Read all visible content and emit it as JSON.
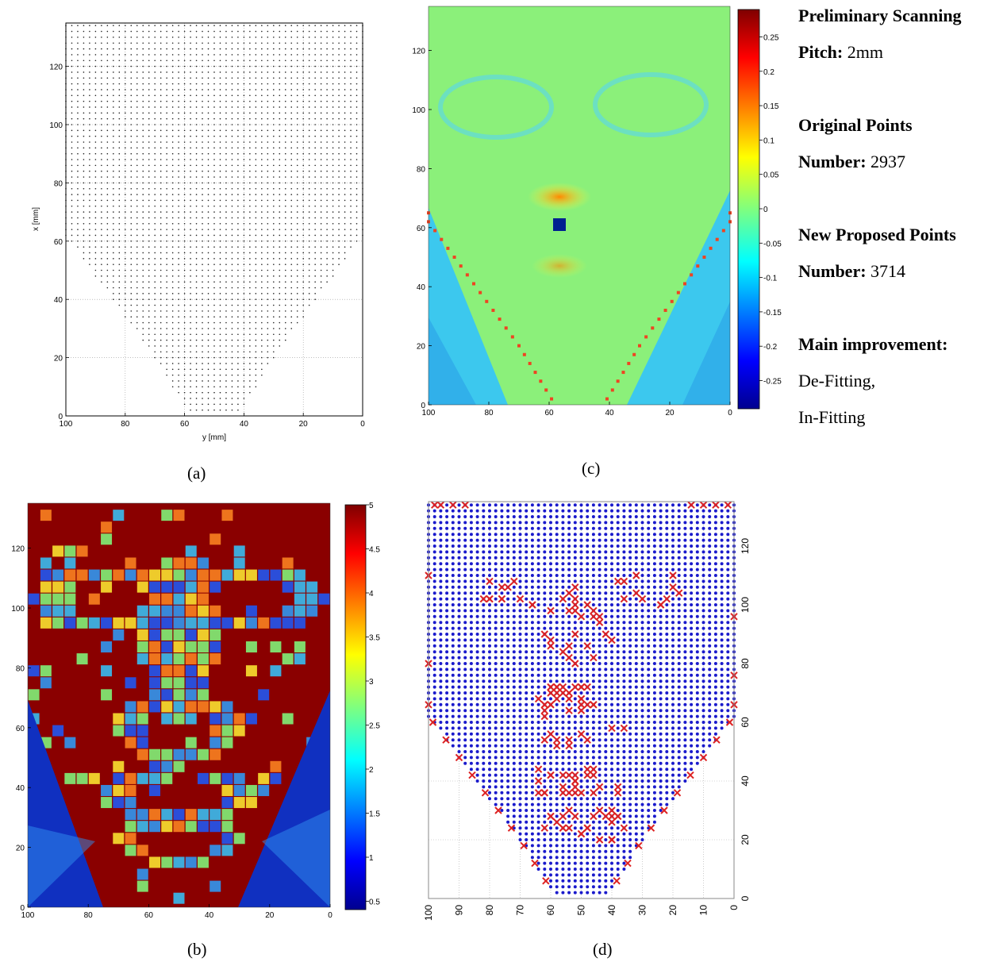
{
  "panels": {
    "a": {
      "caption": "(a)",
      "xlabel": "y [mm]",
      "ylabel": "x [mm]",
      "xticks": [
        "100",
        "80",
        "60",
        "40",
        "20",
        "0"
      ],
      "yticks": [
        "0",
        "20",
        "40",
        "60",
        "80",
        "100",
        "120"
      ]
    },
    "b": {
      "caption": "(b)",
      "xticks": [
        "100",
        "80",
        "60",
        "40",
        "20",
        "0"
      ],
      "yticks": [
        "0",
        "20",
        "40",
        "60",
        "80",
        "100",
        "120"
      ],
      "colorbar_ticks": [
        "0.5",
        "1",
        "1.5",
        "2",
        "2.5",
        "3",
        "3.5",
        "4",
        "4.5",
        "5"
      ]
    },
    "c": {
      "caption": "(c)",
      "xticks": [
        "100",
        "80",
        "60",
        "40",
        "20",
        "0"
      ],
      "yticks": [
        "0",
        "20",
        "40",
        "60",
        "80",
        "100",
        "120"
      ],
      "colorbar_ticks": [
        "0.25",
        "0.2",
        "0.15",
        "0.1",
        "0.05",
        "0",
        "-0.05",
        "-0.1",
        "-0.15",
        "-0.2",
        "-0.25"
      ]
    },
    "d": {
      "caption": "(d)",
      "xticks": [
        "100",
        "90",
        "80",
        "70",
        "60",
        "50",
        "40",
        "30",
        "20",
        "10",
        "0"
      ],
      "yticks": [
        "0",
        "20",
        "40",
        "60",
        "80",
        "100",
        "120"
      ]
    }
  },
  "info": {
    "title": "Preliminary Scanning",
    "pitch_label": "Pitch:",
    "pitch_value": "2mm",
    "orig_title": "Original Points",
    "orig_label": "Number:",
    "orig_value": "2937",
    "new_title": "New Proposed Points",
    "new_label": "Number:",
    "new_value": "3714",
    "impr_title": "Main improvement:",
    "impr_1": "De-Fitting,",
    "impr_2": "In-Fitting"
  },
  "chart_data": [
    {
      "type": "scatter",
      "x_range": [
        100,
        0
      ],
      "y_range": [
        0,
        135
      ],
      "grid": true,
      "pitch_mm": 2,
      "point_count": 2937
    },
    {
      "type": "heatmap",
      "x_range": [
        100,
        0
      ],
      "y_range": [
        0,
        135
      ],
      "color_range": [
        0.4,
        5
      ],
      "colormap": "jet"
    },
    {
      "type": "heatmap",
      "x_range": [
        100,
        0
      ],
      "y_range": [
        0,
        135
      ],
      "color_range": [
        -0.29,
        0.29
      ],
      "colormap": "jet"
    },
    {
      "type": "scatter",
      "x_range": [
        100,
        0
      ],
      "y_range": [
        0,
        135
      ],
      "grid": true,
      "series": [
        {
          "name": "",
          "color": "#1a1acc",
          "marker": "dot"
        },
        {
          "name": "",
          "color": "#dd2222",
          "marker": "x"
        }
      ],
      "proposed_point_count": 3714
    }
  ]
}
